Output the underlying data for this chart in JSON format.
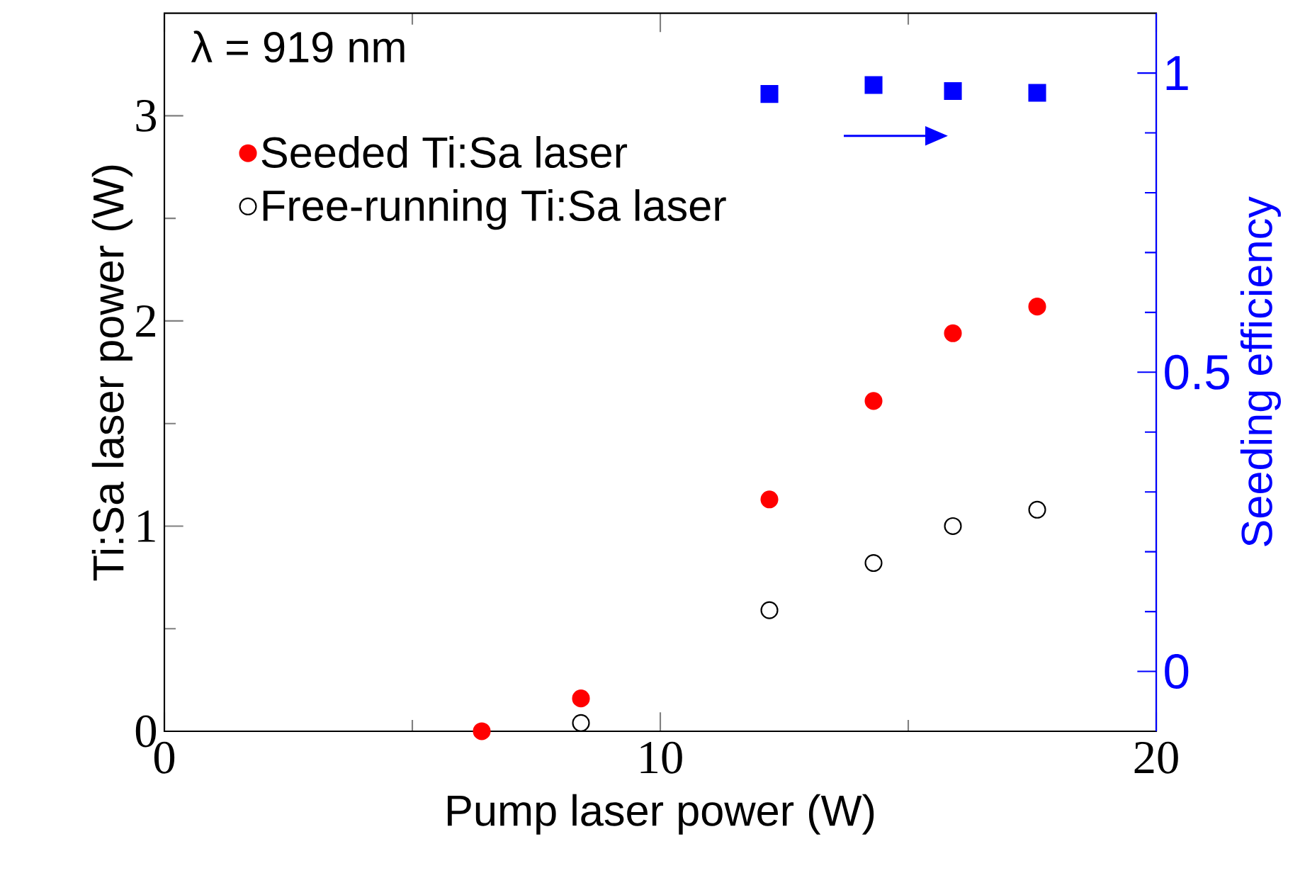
{
  "chart_data": {
    "type": "scatter",
    "xlabel": "Pump laser power (W)",
    "ylabel": "Ti:Sa laser power (W)",
    "y2label": "Seeding efficiency",
    "annotations": [
      "λ = 919 nm"
    ],
    "xlim": [
      0,
      20
    ],
    "xticks": [
      0,
      10,
      20
    ],
    "ylim": [
      0,
      3.5
    ],
    "yticks": [
      0,
      1,
      2,
      3
    ],
    "y2lim": [
      -0.1,
      1.1
    ],
    "y2ticks": [
      0,
      0.5,
      1
    ],
    "legend": "top left",
    "series": [
      {
        "name": "Seeded Ti:Sa laser",
        "color": "#ff0000",
        "marker": "circle",
        "x": [
          6.4,
          8.4,
          12.2,
          14.3,
          15.9,
          17.6
        ],
        "values": [
          0.0,
          0.16,
          1.13,
          1.61,
          1.94,
          2.07
        ]
      },
      {
        "name": "Free-running Ti:Sa laser",
        "color": "#000000",
        "marker": "circle",
        "x": [
          8.4,
          12.2,
          14.3,
          15.9,
          17.6
        ],
        "values": [
          0.04,
          0.59,
          0.82,
          1.0,
          1.08
        ]
      },
      {
        "color": "#0000ff",
        "marker": "square",
        "axis": "y2",
        "x": [
          12.2,
          14.3,
          15.9,
          17.6
        ],
        "values": [
          0.965,
          0.98,
          0.97,
          0.967
        ]
      }
    ]
  }
}
